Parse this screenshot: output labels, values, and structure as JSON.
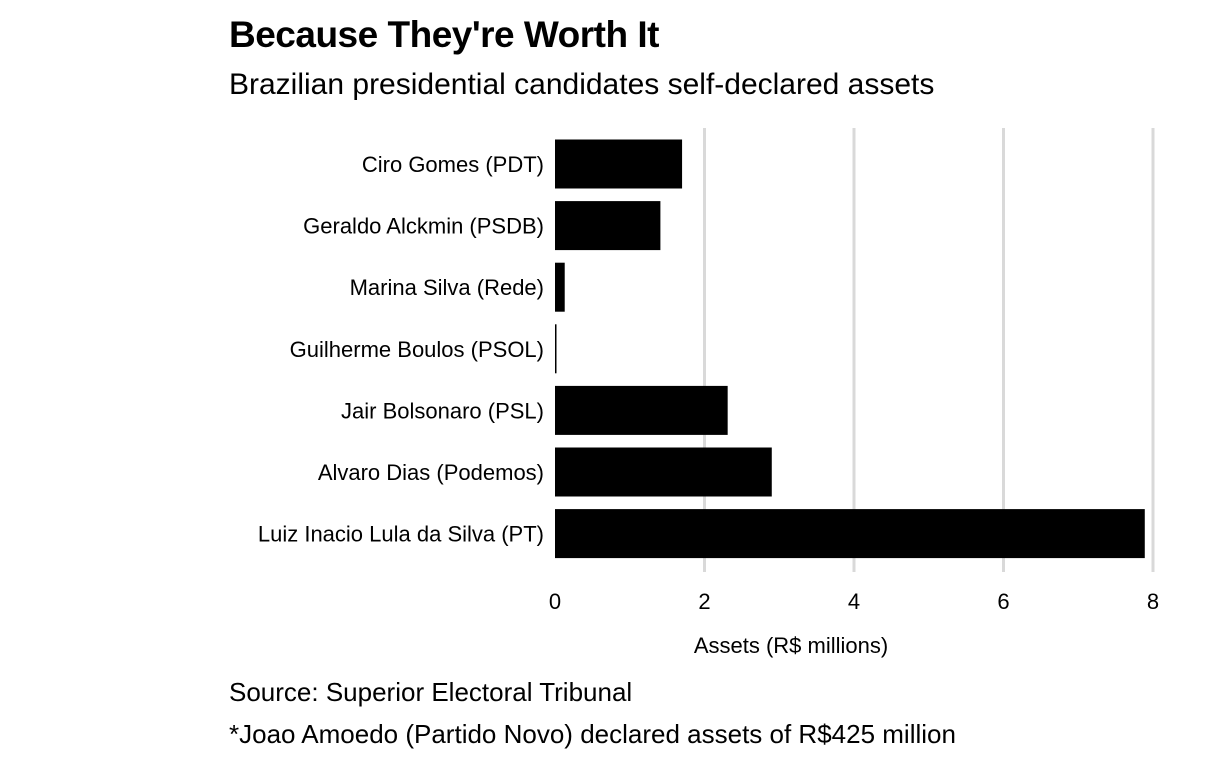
{
  "chart_data": {
    "type": "bar",
    "orientation": "horizontal",
    "title": "Because They're Worth It",
    "subtitle": "Brazilian presidential candidates self-declared assets",
    "categories": [
      "Ciro Gomes (PDT)",
      "Geraldo Alckmin (PSDB)",
      "Marina Silva (Rede)",
      "Guilherme Boulos (PSOL)",
      "Jair Bolsonaro (PSL)",
      "Alvaro Dias (Podemos)",
      "Luiz Inacio Lula da Silva (PT)"
    ],
    "values": [
      1.7,
      1.41,
      0.13,
      0.01,
      2.31,
      2.9,
      7.89
    ],
    "xlabel": "Assets (R$ millions)",
    "ylabel": "",
    "xlim": [
      0,
      8
    ],
    "xticks": [
      "0",
      "2",
      "4",
      "6",
      "8"
    ],
    "grid": true,
    "bar_color": "#000000",
    "grid_color": "#d9d9d9"
  },
  "footer": {
    "source": "Source: Superior Electoral Tribunal",
    "footnote": "*Joao Amoedo (Partido Novo) declared assets of R$425 million"
  }
}
